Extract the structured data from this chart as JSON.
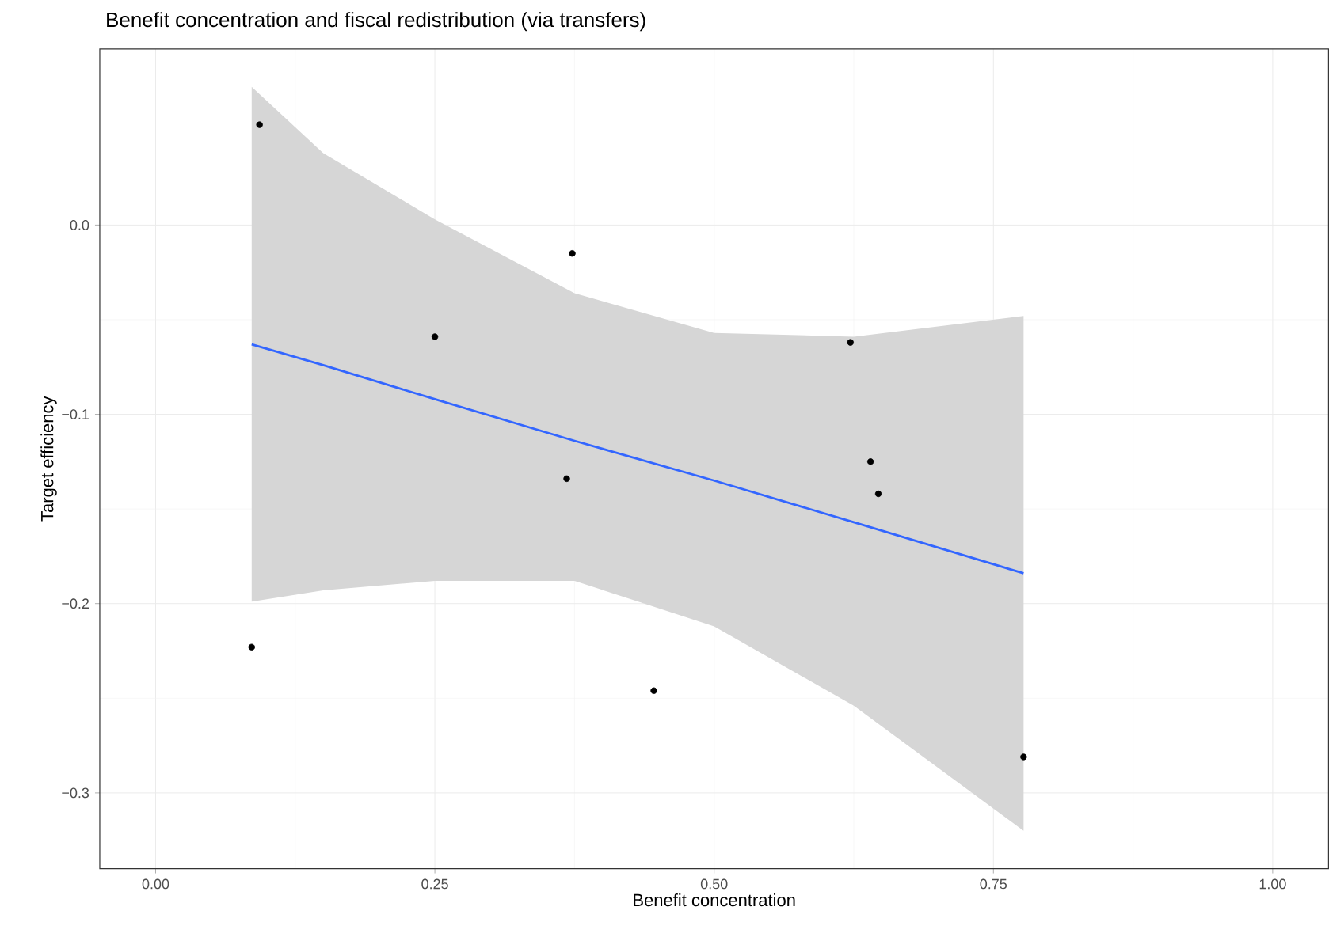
{
  "chart_data": {
    "type": "scatter",
    "title": "Benefit concentration and fiscal redistribution (via transfers)",
    "xlabel": "Benefit concentration",
    "ylabel": "Target efficiency",
    "xlim": [
      -0.05,
      1.05
    ],
    "ylim": [
      -0.34,
      0.093
    ],
    "xticks": [
      {
        "value": 0,
        "label": "0.00"
      },
      {
        "value": 0.25,
        "label": "0.25"
      },
      {
        "value": 0.5,
        "label": "0.50"
      },
      {
        "value": 0.75,
        "label": "0.75"
      },
      {
        "value": 1,
        "label": "1.00"
      }
    ],
    "yticks": [
      {
        "value": -0.3,
        "label": "−0.3"
      },
      {
        "value": -0.2,
        "label": "−0.2"
      },
      {
        "value": -0.1,
        "label": "−0.1"
      },
      {
        "value": 0,
        "label": "0.0"
      }
    ],
    "grid": true,
    "series": [
      {
        "marker": "circle",
        "color": "#000000",
        "x": [
          0.093,
          0.086,
          0.25,
          0.373,
          0.368,
          0.446,
          0.622,
          0.64,
          0.647,
          0.777
        ],
        "values": [
          0.053,
          -0.223,
          -0.059,
          -0.015,
          -0.134,
          -0.246,
          -0.062,
          -0.125,
          -0.142,
          -0.281
        ]
      },
      {
        "type": "line",
        "marker": "none",
        "color": "#3366ff",
        "x": [
          0.086,
          0.15,
          0.25,
          0.375,
          0.5,
          0.625,
          0.777
        ],
        "values": [
          -0.063,
          -0.074,
          -0.092,
          -0.114,
          -0.135,
          -0.157,
          -0.184
        ],
        "lower": [
          -0.199,
          -0.193,
          -0.188,
          -0.188,
          -0.212,
          -0.254,
          -0.32
        ],
        "upper": [
          0.073,
          0.038,
          0.003,
          -0.036,
          -0.057,
          -0.059,
          -0.048
        ]
      }
    ]
  }
}
